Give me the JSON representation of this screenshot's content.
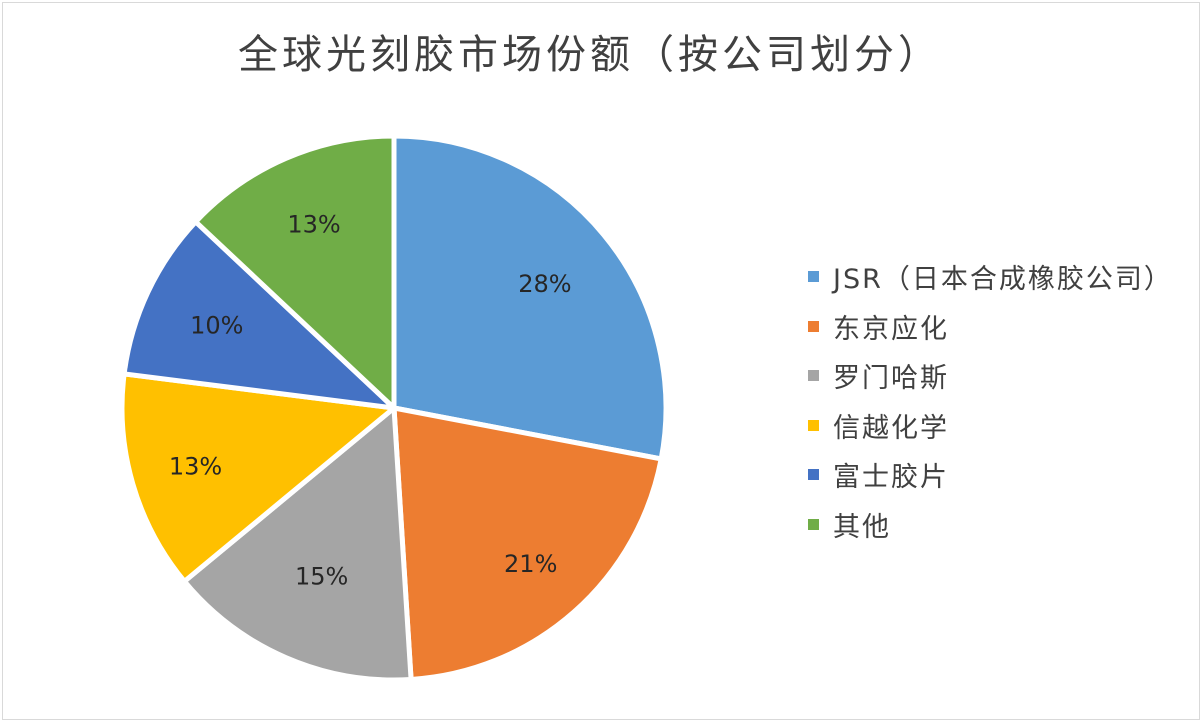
{
  "chart_data": {
    "type": "pie",
    "title": "全球光刻胶市场份额（按公司划分）",
    "categories": [
      "JSR（日本合成橡胶公司）",
      "东京应化",
      "罗门哈斯",
      "信越化学",
      "富士胶片",
      "其他"
    ],
    "values": [
      28,
      21,
      15,
      13,
      10,
      13
    ],
    "labels": [
      "28%",
      "21%",
      "15%",
      "13%",
      "10%",
      "13%"
    ],
    "colors": [
      "#5B9BD5",
      "#ED7D31",
      "#A5A5A5",
      "#FFC000",
      "#4472C4",
      "#70AD47"
    ],
    "start_angle": "12 o'clock",
    "direction": "clockwise",
    "legend_position": "right",
    "unit": "%"
  },
  "title": "全球光刻胶市场份额（按公司划分）",
  "legend": [
    {
      "label": "JSR（日本合成橡胶公司）",
      "color": "#5B9BD5"
    },
    {
      "label": "东京应化",
      "color": "#ED7D31"
    },
    {
      "label": "罗门哈斯",
      "color": "#A5A5A5"
    },
    {
      "label": "信越化学",
      "color": "#FFC000"
    },
    {
      "label": "富士胶片",
      "color": "#4472C4"
    },
    {
      "label": "其他",
      "color": "#70AD47"
    }
  ]
}
